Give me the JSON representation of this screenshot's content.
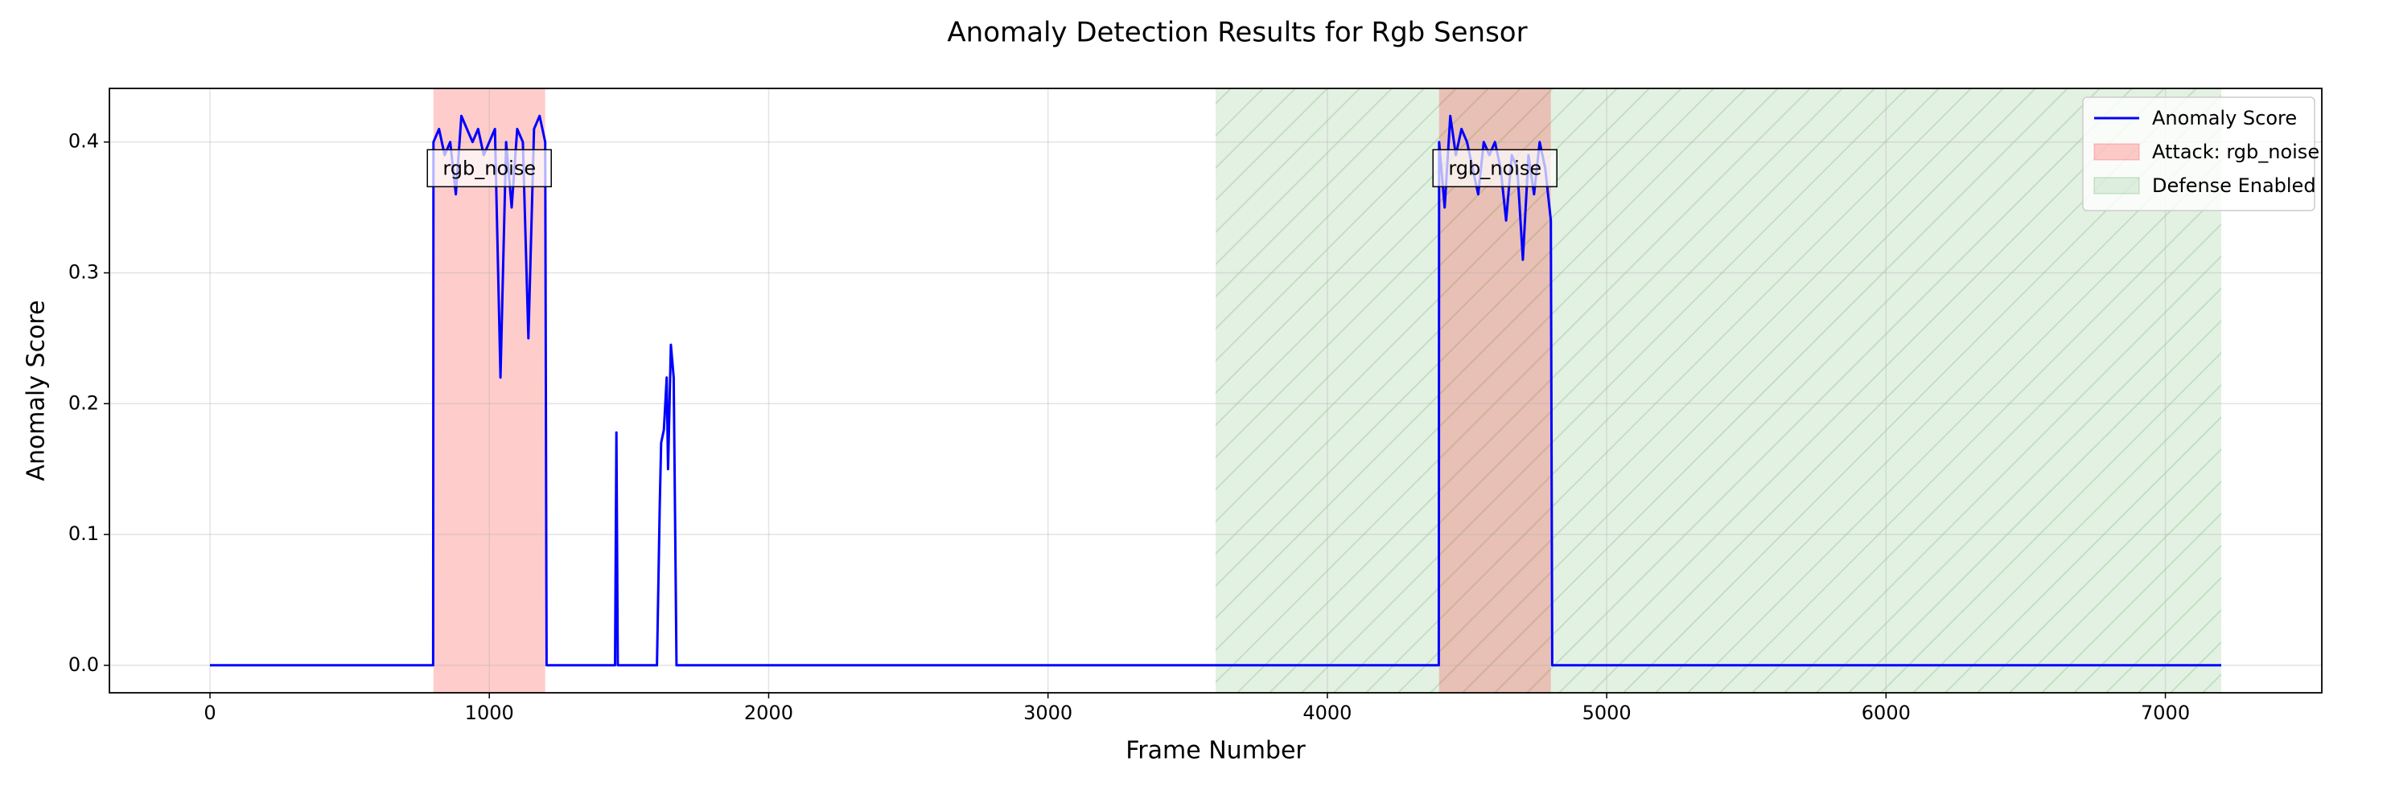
{
  "chart_data": {
    "type": "line",
    "title": "Anomaly Detection Results for Rgb Sensor",
    "x_label": "Frame Number",
    "y_label": "Anomaly Score",
    "x": [
      0,
      799,
      800,
      820,
      840,
      860,
      880,
      900,
      920,
      940,
      960,
      980,
      1000,
      1020,
      1040,
      1060,
      1080,
      1100,
      1120,
      1140,
      1160,
      1180,
      1200,
      1205,
      1450,
      1455,
      1460,
      1600,
      1610,
      1615,
      1625,
      1635,
      1640,
      1650,
      1660,
      1670,
      4399,
      4400,
      4420,
      4440,
      4460,
      4480,
      4500,
      4520,
      4540,
      4560,
      4580,
      4600,
      4620,
      4640,
      4660,
      4680,
      4700,
      4720,
      4740,
      4760,
      4780,
      4800,
      4805,
      7200
    ],
    "series": [
      {
        "name": "Anomaly Score",
        "color": "#0000ff",
        "values": [
          0,
          0,
          0.4,
          0.41,
          0.39,
          0.4,
          0.36,
          0.42,
          0.41,
          0.4,
          0.41,
          0.39,
          0.4,
          0.41,
          0.22,
          0.4,
          0.35,
          0.41,
          0.4,
          0.25,
          0.41,
          0.42,
          0.4,
          0,
          0,
          0.178,
          0,
          0,
          0.12,
          0.17,
          0.18,
          0.22,
          0.15,
          0.245,
          0.22,
          0,
          0,
          0.4,
          0.35,
          0.42,
          0.39,
          0.41,
          0.4,
          0.38,
          0.36,
          0.4,
          0.39,
          0.4,
          0.38,
          0.34,
          0.39,
          0.38,
          0.31,
          0.39,
          0.36,
          0.4,
          0.38,
          0.34,
          0,
          0
        ]
      }
    ],
    "attack_label": "Attack: rgb_noise",
    "attack_color": "#ff0000",
    "attack_spans": [
      [
        800,
        1200
      ],
      [
        4400,
        4800
      ]
    ],
    "defense_label": "Defense Enabled",
    "defense_color": "#008000",
    "defense_span": [
      3600,
      7200
    ],
    "annotations": [
      {
        "text": "rgb_noise",
        "x": 1000,
        "y": 0.38
      },
      {
        "text": "rgb_noise",
        "x": 4600,
        "y": 0.38
      }
    ],
    "xlim": [
      -360,
      7560
    ],
    "ylim": [
      -0.021,
      0.441
    ],
    "xticks": [
      0,
      1000,
      2000,
      3000,
      4000,
      5000,
      6000,
      7000
    ],
    "yticks": [
      {
        "value": 0,
        "label": "0.0"
      },
      0.1,
      0.2,
      0.3,
      0.4
    ],
    "grid": true,
    "legend": "upper right"
  }
}
